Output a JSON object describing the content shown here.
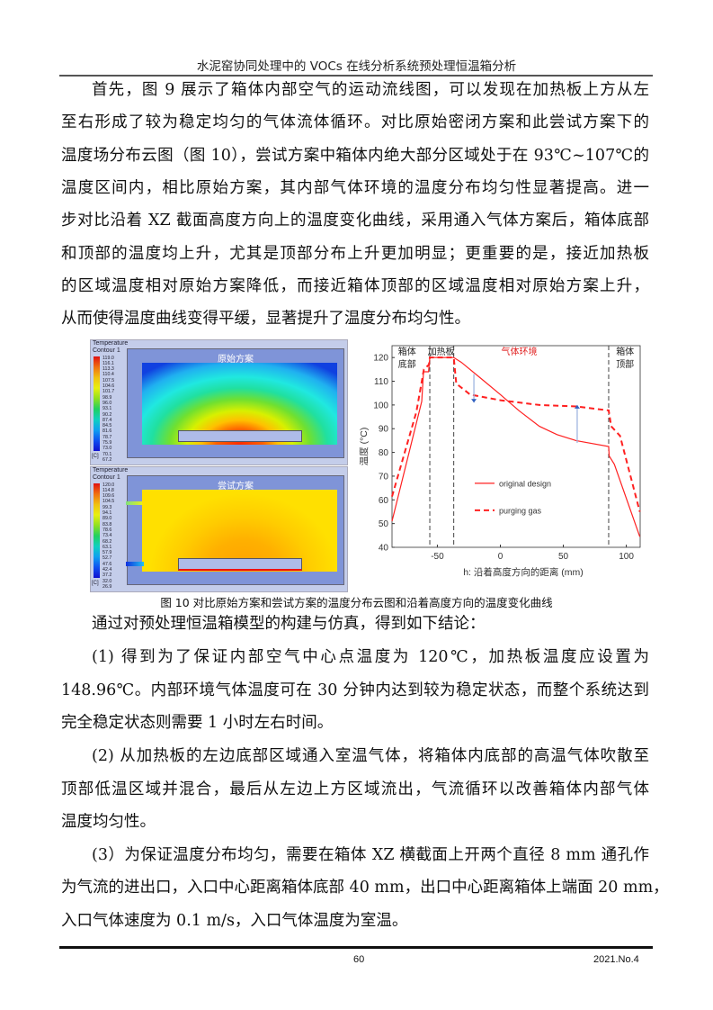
{
  "header": {
    "running_title": "水泥窑协同处理中的 VOCs 在线分析系统预处理恒温箱分析"
  },
  "body_top": [
    [
      "首先，图 9 展示了箱体内部空气的运动流线图，可以发现在加热板上方从左",
      "至右形成了较为稳定均匀的气体流体循环。对比原始密闭方案和此尝试方案下的",
      "温度场分布云图（图 10），尝试方案中箱体内绝大部分区域处于在 93℃~107℃的",
      "温度区间内，相比原始方案，其内部气体环境的温度分布均匀性显著提高。进一",
      "步对比沿着 XZ 截面高度方向上的温度变化曲线，采用通入气体方案后，箱体底部",
      "和顶部的温度均上升，尤其是顶部分布上升更加明显；更重要的是，接近加热板",
      "的区域温度相对原始方案降低，而接近箱体顶部的区域温度相对原始方案上升，",
      "从而使得温度曲线变得平缓，显著提升了温度分布均匀性。"
    ]
  ],
  "figure": {
    "caption": "图 10 对比原始方案和尝试方案的温度分布云图和沿着高度方向的温度变化曲线",
    "contours": [
      {
        "title": "原始方案",
        "legend_title": [
          "Temperature",
          "Contour 1"
        ],
        "unit": "[C]",
        "values": [
          "119.0",
          "116.1",
          "113.3",
          "110.4",
          "107.5",
          "104.6",
          "101.7",
          "98.9",
          "96.0",
          "93.1",
          "90.2",
          "87.4",
          "84.5",
          "81.6",
          "78.7",
          "75.9",
          "73.0",
          "70.1",
          "67.2"
        ]
      },
      {
        "title": "尝试方案",
        "legend_title": [
          "Temperature",
          "Contour 1"
        ],
        "unit": "[C]",
        "values": [
          "120.0",
          "114.8",
          "109.6",
          "104.5",
          "99.3",
          "94.1",
          "89.0",
          "83.8",
          "78.6",
          "73.4",
          "68.2",
          "63.1",
          "57.9",
          "52.7",
          "47.6",
          "42.4",
          "37.2",
          "32.0",
          "26.9"
        ]
      }
    ]
  },
  "chart_data": {
    "type": "line",
    "xlabel": "h: 沿着高度方向的距离 (mm)",
    "ylabel": "温度 (°C)",
    "xlim": [
      -86,
      111
    ],
    "ylim": [
      40,
      125
    ],
    "xticks": [
      -50,
      0,
      50,
      100
    ],
    "yticks": [
      40,
      50,
      60,
      70,
      80,
      90,
      100,
      110,
      120
    ],
    "grid": false,
    "legend_placement": "center-left",
    "region_labels": [
      {
        "text": [
          "箱体",
          "底部"
        ],
        "x": -74
      },
      {
        "text": [
          "加热板"
        ],
        "x": -47
      },
      {
        "text": [
          "气体环境"
        ],
        "x": 15,
        "color": "#e02020"
      },
      {
        "text": [
          "箱体",
          "顶部"
        ],
        "x": 99
      }
    ],
    "vlines": [
      -56,
      -37,
      86
    ],
    "arrows": [
      {
        "x": -21,
        "from": 113,
        "to": 101
      },
      {
        "x": 61,
        "from": 84,
        "to": 100
      }
    ],
    "series": [
      {
        "name": "original design",
        "style": "solid",
        "color": "#ff2020",
        "points": [
          [
            -86,
            51
          ],
          [
            -62.4,
            101.5
          ],
          [
            -61,
            114
          ],
          [
            -57,
            114
          ],
          [
            -56,
            120
          ],
          [
            -37,
            120
          ],
          [
            -31,
            118
          ],
          [
            -15,
            111
          ],
          [
            0,
            104.4
          ],
          [
            15,
            97.5
          ],
          [
            31,
            91
          ],
          [
            45,
            87.5
          ],
          [
            60,
            85
          ],
          [
            86,
            82.5
          ],
          [
            86.4,
            78.5
          ],
          [
            90.5,
            75
          ],
          [
            110.7,
            44.5
          ]
        ]
      },
      {
        "name": "purging gas",
        "style": "dashed",
        "color": "#ff2020",
        "points": [
          [
            -86,
            61.4
          ],
          [
            -66.7,
            97
          ],
          [
            -60.7,
            115
          ],
          [
            -56.7,
            117
          ],
          [
            -56,
            120
          ],
          [
            -37,
            120
          ],
          [
            -35,
            109
          ],
          [
            -24,
            104.4
          ],
          [
            0,
            102
          ],
          [
            31,
            100
          ],
          [
            60,
            99.4
          ],
          [
            86,
            97.7
          ],
          [
            88,
            91
          ],
          [
            95,
            87
          ],
          [
            110.7,
            55
          ]
        ]
      }
    ]
  },
  "body_bottom": [
    [
      "通过对预处理恒温箱模型的构建与仿真，得到如下结论："
    ],
    [
      "(1) 得到为了保证内部空气中心点温度为 120℃，加热板温度应设置为",
      "148.96℃。内部环境气体温度可在 30 分钟内达到较为稳定状态，而整个系统达到",
      "完全稳定状态则需要 1 小时左右时间。"
    ],
    [
      "(2) 从加热板的左边底部区域通入室温气体，将箱体内底部的高温气体吹散至",
      "顶部低温区域并混合，最后从左边上方区域流出，气流循环以改善箱体内部气体",
      "温度均匀性。"
    ],
    [
      "(3）为保证温度分布均匀，需要在箱体 XZ 横截面上开两个直径 8 mm 通孔作",
      "为气流的进出口，入口中心距离箱体底部 40 mm，出口中心距离箱体上端面 20 mm，",
      "入口气体速度为 0.1 m/s，入口气体温度为室温。"
    ]
  ],
  "footer": {
    "page_number": "60",
    "issue": "2021.No.4"
  }
}
